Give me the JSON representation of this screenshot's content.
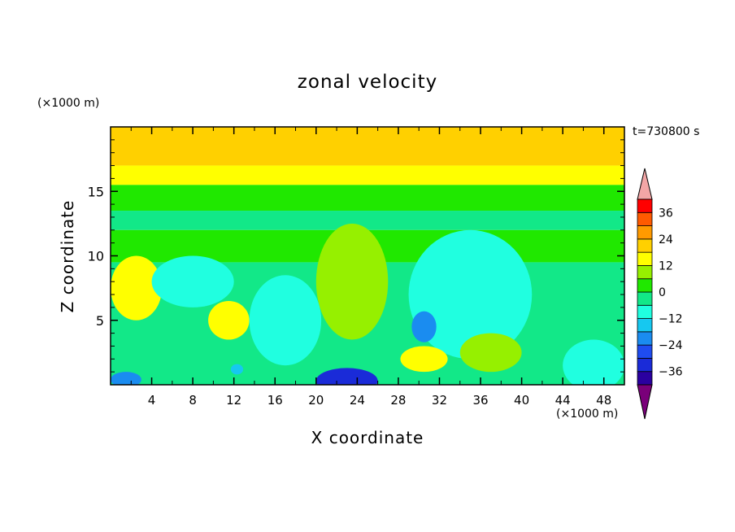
{
  "chart_data": {
    "type": "heatmap",
    "title": "zonal velocity",
    "xlabel": "X coordinate",
    "ylabel": "Z coordinate",
    "x_unit": "(×1000 m)",
    "y_unit": "(×1000 m)",
    "time_label": "t=730800 s",
    "xlim": [
      0,
      50
    ],
    "ylim": [
      0,
      20
    ],
    "x_ticks": [
      4,
      8,
      12,
      16,
      20,
      24,
      28,
      32,
      36,
      40,
      44,
      48
    ],
    "y_ticks": [
      5,
      10,
      15
    ],
    "colorbar": {
      "levels": [
        -42,
        -36,
        -30,
        -24,
        -18,
        -12,
        -6,
        0,
        6,
        12,
        18,
        24,
        30,
        36,
        42
      ],
      "tick_labels": [
        36,
        24,
        12,
        0,
        -12,
        -24,
        -36
      ],
      "colors": [
        "#7a007a",
        "#2a00a0",
        "#1a2bd8",
        "#1f4cf0",
        "#1a8cf0",
        "#16c8f0",
        "#20ffe0",
        "#12e888",
        "#20e800",
        "#96f000",
        "#ffff00",
        "#ffd000",
        "#ff9a00",
        "#ff5a00",
        "#ff0000",
        "#f2a6a6"
      ],
      "extend": "both"
    },
    "field_features": [
      {
        "type": "band",
        "z": [
          17,
          20
        ],
        "value": 20
      },
      {
        "type": "band",
        "z": [
          15.5,
          17
        ],
        "value": 13
      },
      {
        "type": "band",
        "z": [
          13.5,
          15.5
        ],
        "value": 4
      },
      {
        "type": "band",
        "z": [
          12,
          13.5
        ],
        "value": -3
      },
      {
        "type": "band",
        "z": [
          9.5,
          12
        ],
        "value": 5
      },
      {
        "type": "band",
        "z": [
          0,
          9.5
        ],
        "value": -2
      },
      {
        "type": "blob",
        "x": 40,
        "z": 18.5,
        "rx": 8,
        "rz": 1,
        "value": 23
      },
      {
        "type": "blob",
        "x": 2.5,
        "z": 7.5,
        "rx": 2.5,
        "rz": 2.5,
        "value": 12
      },
      {
        "type": "blob",
        "x": 11.5,
        "z": 5,
        "rx": 2,
        "rz": 1.5,
        "value": 12
      },
      {
        "type": "blob",
        "x": 23.5,
        "z": 8,
        "rx": 3.5,
        "rz": 4.5,
        "value": 8
      },
      {
        "type": "blob",
        "x": 8,
        "z": 8,
        "rx": 4,
        "rz": 2,
        "value": -10
      },
      {
        "type": "blob",
        "x": 17,
        "z": 5,
        "rx": 3.5,
        "rz": 3.5,
        "value": -11
      },
      {
        "type": "blob",
        "x": 35,
        "z": 7,
        "rx": 6,
        "rz": 5,
        "value": -12
      },
      {
        "type": "blob",
        "x": 30.5,
        "z": 4.5,
        "rx": 1.2,
        "rz": 1.2,
        "value": -20
      },
      {
        "type": "blob",
        "x": 30.5,
        "z": 2,
        "rx": 2.3,
        "rz": 1,
        "value": 15
      },
      {
        "type": "blob",
        "x": 37,
        "z": 2.5,
        "rx": 3,
        "rz": 1.5,
        "value": 8
      },
      {
        "type": "blob",
        "x": 23,
        "z": 0.3,
        "rx": 3,
        "rz": 1,
        "value": -32
      },
      {
        "type": "blob",
        "x": 1.5,
        "z": 0.4,
        "rx": 1.5,
        "rz": 0.6,
        "value": -22
      },
      {
        "type": "blob",
        "x": 12.3,
        "z": 1.2,
        "rx": 0.6,
        "rz": 0.4,
        "value": -18
      },
      {
        "type": "blob",
        "x": 47,
        "z": 1.5,
        "rx": 3,
        "rz": 2,
        "value": -10
      }
    ]
  }
}
